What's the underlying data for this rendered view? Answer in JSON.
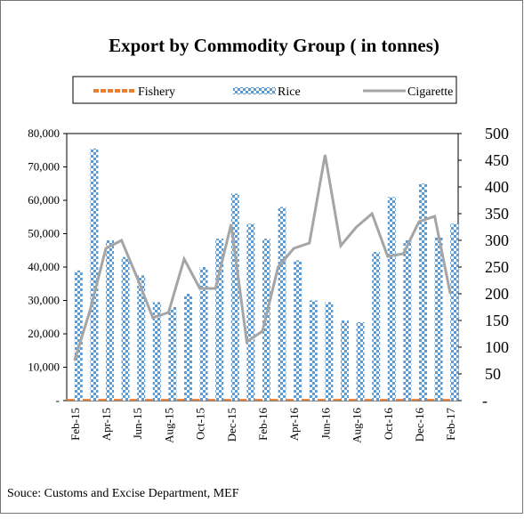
{
  "chart_data": {
    "type": "bar-line",
    "title": "Export by Commodity Group ( in tonnes)",
    "source": "Souce: Customs and Excise Department, MEF",
    "categories": [
      "Feb-15",
      null,
      "Apr-15",
      null,
      "Jun-15",
      null,
      "Aug-15",
      null,
      "Oct-15",
      null,
      "Dec-15",
      null,
      "Feb-16",
      null,
      "Apr-16",
      null,
      "Jun-16",
      null,
      "Aug-16",
      null,
      "Oct-16",
      null,
      "Dec-16",
      null,
      "Feb-17"
    ],
    "series": [
      {
        "name": "Fishery",
        "color": "#ed7d31",
        "kind": "bar",
        "values": [
          500,
          500,
          500,
          500,
          500,
          500,
          500,
          500,
          500,
          500,
          500,
          500,
          500,
          500,
          500,
          500,
          500,
          500,
          500,
          500,
          500,
          500,
          500,
          500,
          500
        ]
      },
      {
        "name": "Rice",
        "color": "#5b9bd5",
        "kind": "bar",
        "values": [
          39000,
          75500,
          48000,
          43000,
          37500,
          29500,
          28000,
          32000,
          40000,
          48500,
          62000,
          53000,
          48500,
          58000,
          42000,
          30000,
          29500,
          24000,
          23500,
          44500,
          61000,
          48000,
          65000,
          49000,
          53000
        ]
      },
      {
        "name": "Cigarette",
        "color": "#a5a5a5",
        "kind": "line",
        "axis": "y2",
        "values": [
          75,
          170,
          285,
          300,
          230,
          155,
          165,
          265,
          210,
          210,
          330,
          110,
          130,
          250,
          285,
          295,
          460,
          290,
          325,
          350,
          270,
          275,
          335,
          345,
          200
        ]
      }
    ],
    "ylim": [
      0,
      80000
    ],
    "yticks": [
      {
        "value": 0,
        "label": "-"
      },
      {
        "value": 10000,
        "label": "10,000"
      },
      {
        "value": 20000,
        "label": "20,000"
      },
      {
        "value": 30000,
        "label": "30,000"
      },
      {
        "value": 40000,
        "label": "40,000"
      },
      {
        "value": 50000,
        "label": "50,000"
      },
      {
        "value": 60000,
        "label": "60,000"
      },
      {
        "value": 70000,
        "label": "70,000"
      },
      {
        "value": 80000,
        "label": "80,000"
      }
    ],
    "y2lim": [
      0,
      500
    ],
    "y2ticks": [
      {
        "value": 0,
        "label": "-"
      },
      50,
      100,
      150,
      200,
      250,
      300,
      350,
      400,
      450,
      500
    ]
  }
}
